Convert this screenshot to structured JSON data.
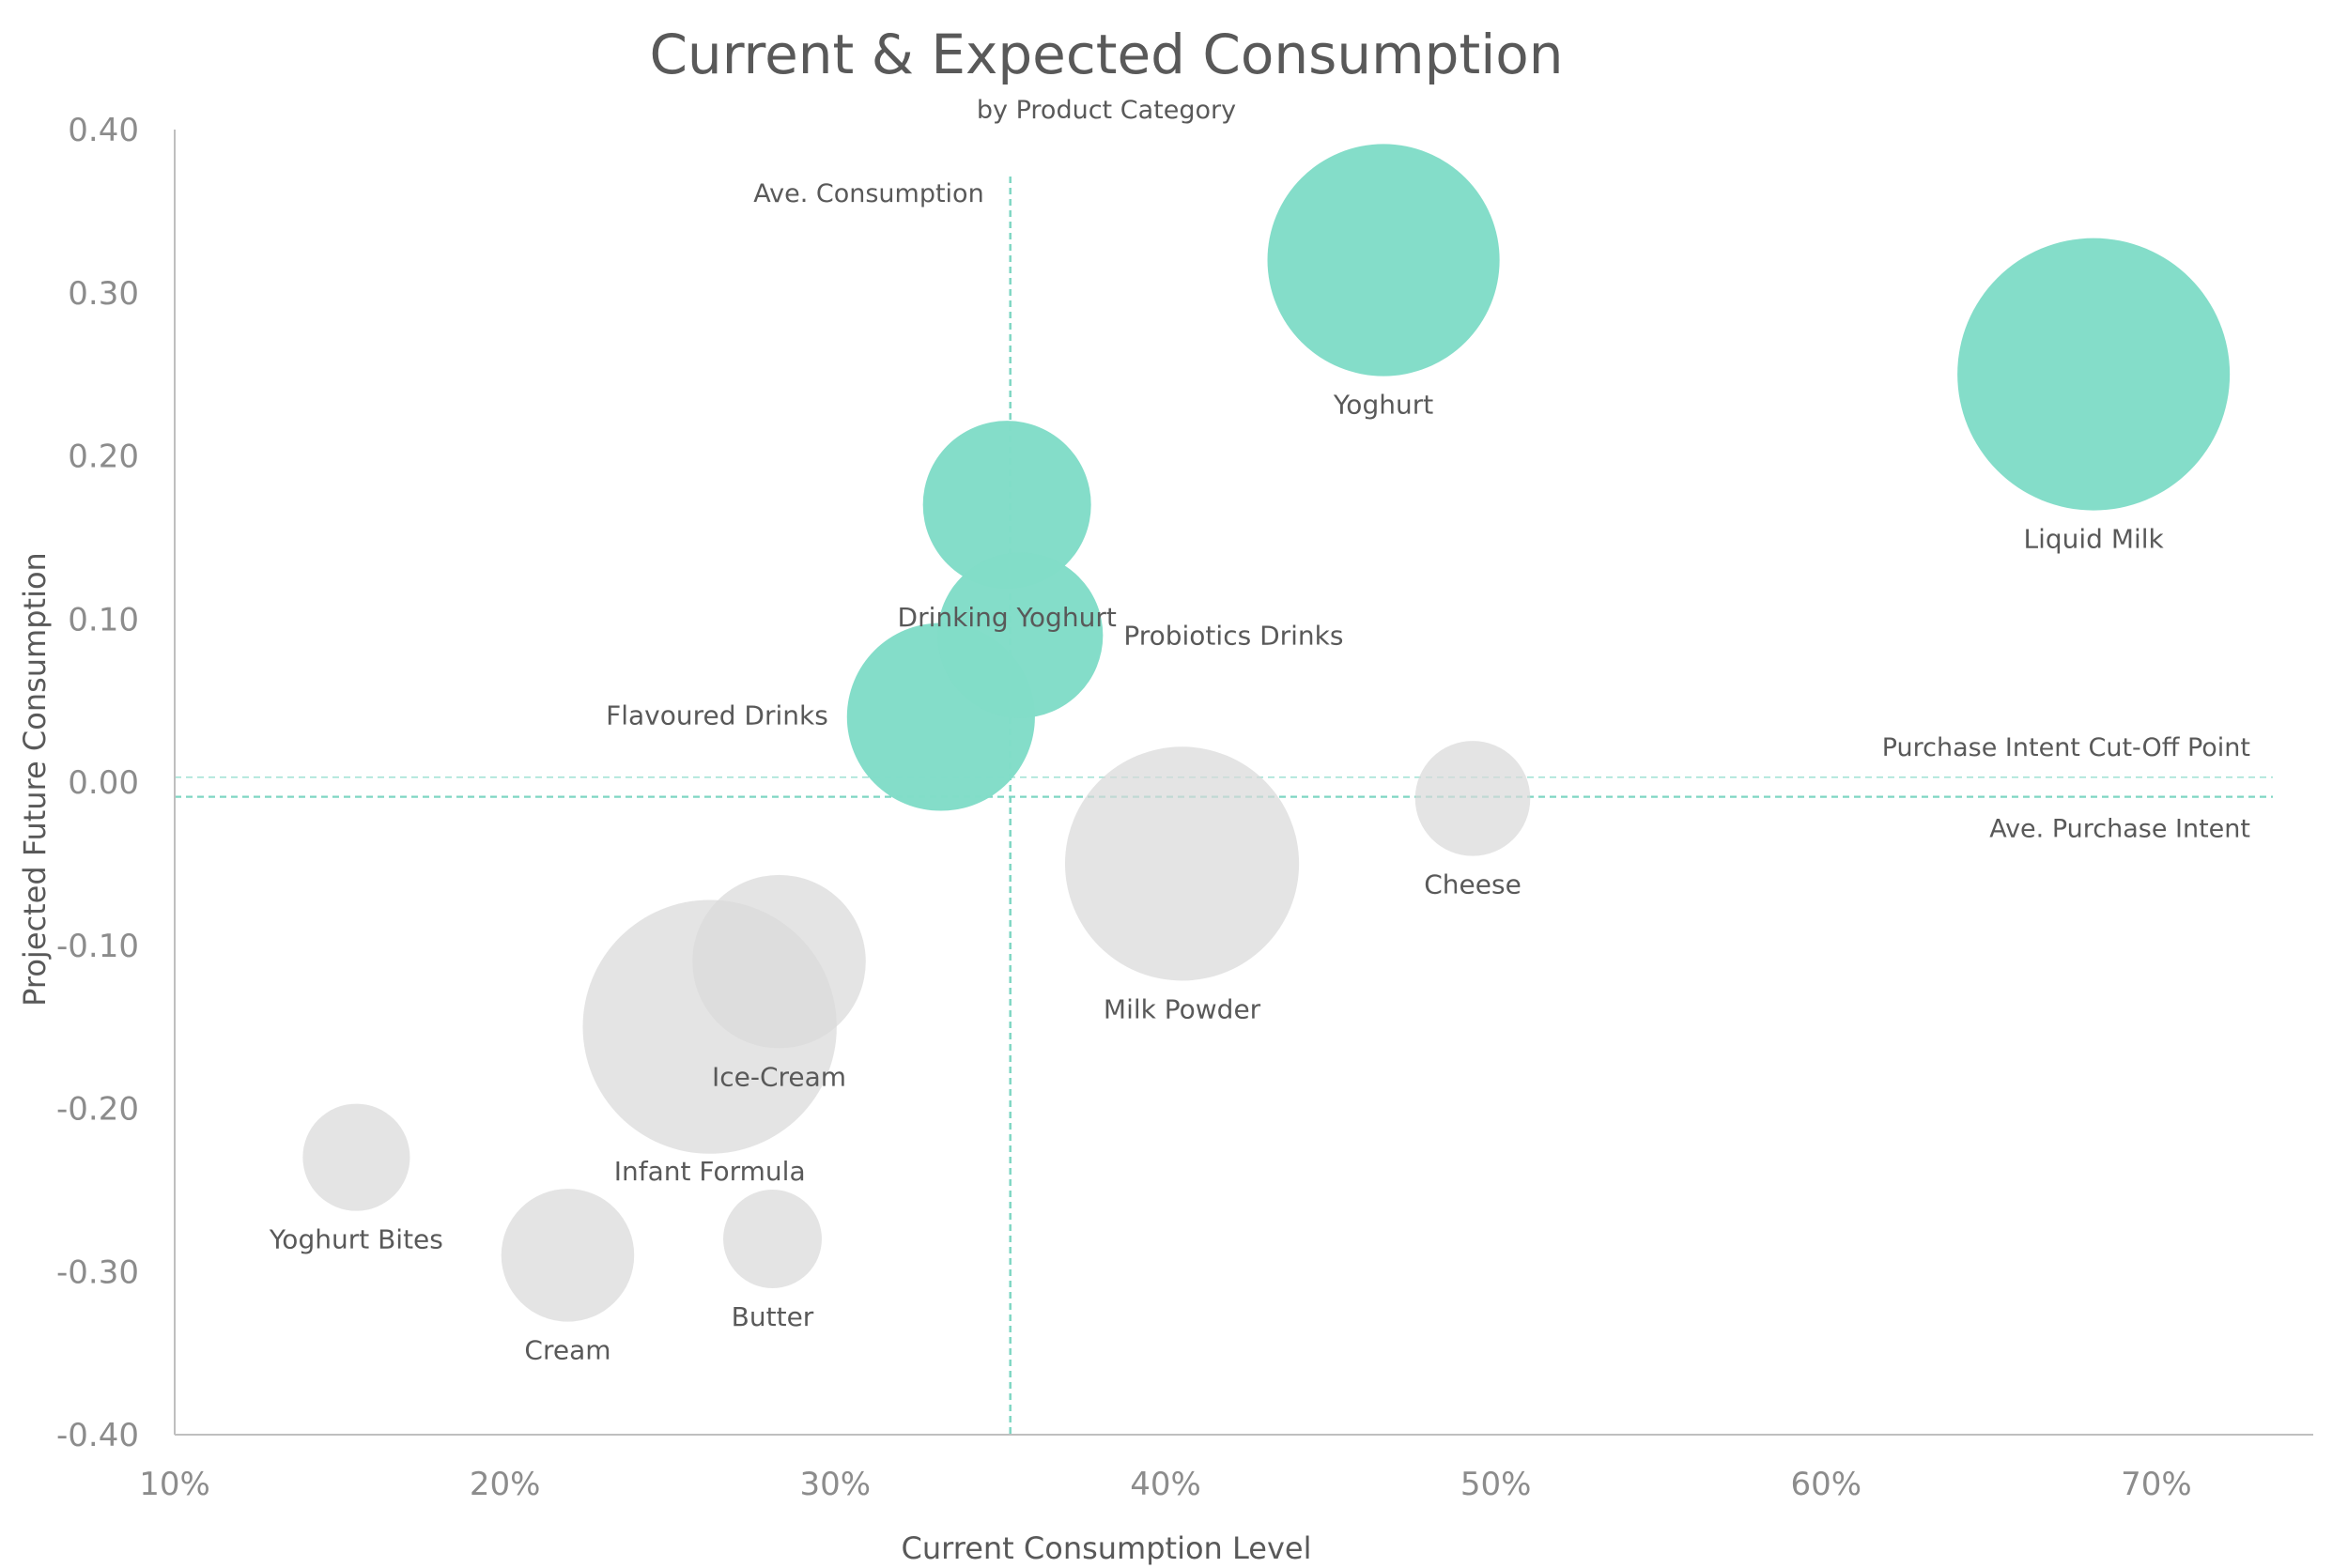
{
  "colors": {
    "highlight": "#82dcc8",
    "muted": "#d9d9d9",
    "reference_line": "#7fd6c3",
    "cutoff_line": "#a6e3d6",
    "axis": "#bfbfbf",
    "text": "#595959",
    "tick_text": "#8c8c8c"
  },
  "chart_data": {
    "type": "bubble",
    "title": "Current & Expected Consumption",
    "subtitle": "by Product Category",
    "xlabel": "Current Consumption Level",
    "ylabel": "Projected Future Consumption",
    "xlim": [
      0.1,
      0.7475
    ],
    "ylim": [
      -0.4,
      0.4
    ],
    "x_ticks": [
      0.1,
      0.2,
      0.3,
      0.4,
      0.5,
      0.6,
      0.7
    ],
    "x_tick_labels": [
      "10%",
      "20%",
      "30%",
      "40%",
      "50%",
      "60%",
      "70%"
    ],
    "y_ticks": [
      0.4,
      0.3,
      0.2,
      0.1,
      0.0,
      -0.1,
      -0.2,
      -0.3,
      -0.4
    ],
    "y_tick_labels": [
      "0.40",
      "0.30",
      "0.20",
      "0.10",
      "0.00",
      "-0.10",
      "-0.20",
      "-0.30",
      "-0.40"
    ],
    "grid": false,
    "legend": "none",
    "points": [
      {
        "name": "Infant Formula",
        "x": 0.262,
        "y": -0.15,
        "size": 73,
        "group": "muted",
        "label_pos": "below-offset"
      },
      {
        "name": "Ice-Cream",
        "x": 0.283,
        "y": -0.11,
        "size": 34,
        "group": "muted",
        "label_pos": "below"
      },
      {
        "name": "Milk Powder",
        "x": 0.405,
        "y": -0.05,
        "size": 62,
        "group": "muted",
        "label_pos": "below"
      },
      {
        "name": "Cheese",
        "x": 0.493,
        "y": -0.01,
        "size": 15,
        "group": "muted",
        "label_pos": "below"
      },
      {
        "name": "Yoghurt Bites",
        "x": 0.155,
        "y": -0.23,
        "size": 13,
        "group": "muted",
        "label_pos": "below"
      },
      {
        "name": "Cream",
        "x": 0.219,
        "y": -0.29,
        "size": 20,
        "group": "muted",
        "label_pos": "below"
      },
      {
        "name": "Butter",
        "x": 0.281,
        "y": -0.28,
        "size": 11,
        "group": "muted",
        "label_pos": "below"
      },
      {
        "name": "Yoghurt",
        "x": 0.466,
        "y": 0.32,
        "size": 61,
        "group": "highlight",
        "label_pos": "below"
      },
      {
        "name": "Liquid Milk",
        "x": 0.681,
        "y": 0.25,
        "size": 84,
        "group": "highlight",
        "label_pos": "below"
      },
      {
        "name": "Drinking Yoghurt",
        "x": 0.352,
        "y": 0.17,
        "size": 32,
        "group": "highlight",
        "label_pos": "below"
      },
      {
        "name": "Probiotics Drinks",
        "x": 0.356,
        "y": 0.09,
        "size": 31,
        "group": "highlight",
        "label_pos": "right"
      },
      {
        "name": "Flavoured Drinks",
        "x": 0.332,
        "y": 0.04,
        "size": 40,
        "group": "highlight",
        "label_pos": "left"
      }
    ],
    "reference_lines": [
      {
        "name": "Ave. Consumption",
        "axis": "x",
        "value": 0.353
      },
      {
        "name": "Purchase Intent Cut-Off Point",
        "axis": "y",
        "value": 0.003
      },
      {
        "name": "Ave. Purchase Intent",
        "axis": "y",
        "value": -0.009
      }
    ]
  }
}
